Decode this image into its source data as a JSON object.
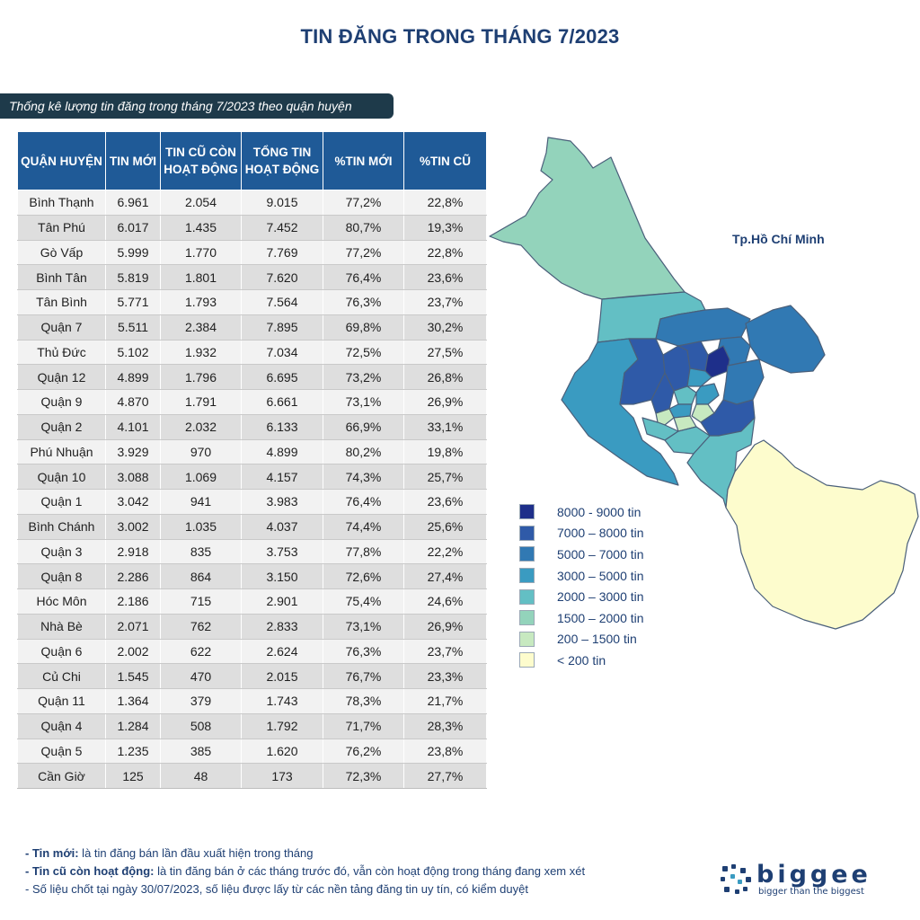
{
  "title": "TIN ĐĂNG TRONG THÁNG 7/2023",
  "subtitle": "Thống kê lượng tin đăng trong tháng 7/2023 theo quận huyện",
  "table": {
    "headers": [
      "QUẬN HUYỆN",
      "TIN MỚI",
      "TIN CŨ CÒN HOẠT ĐỘNG",
      "TỔNG TIN HOẠT ĐỘNG",
      "%TIN MỚI",
      "%TIN CŨ"
    ],
    "rows": [
      [
        "Bình Thạnh",
        "6.961",
        "2.054",
        "9.015",
        "77,2%",
        "22,8%"
      ],
      [
        "Tân Phú",
        "6.017",
        "1.435",
        "7.452",
        "80,7%",
        "19,3%"
      ],
      [
        "Gò Vấp",
        "5.999",
        "1.770",
        "7.769",
        "77,2%",
        "22,8%"
      ],
      [
        "Bình Tân",
        "5.819",
        "1.801",
        "7.620",
        "76,4%",
        "23,6%"
      ],
      [
        "Tân Bình",
        "5.771",
        "1.793",
        "7.564",
        "76,3%",
        "23,7%"
      ],
      [
        "Quận 7",
        "5.511",
        "2.384",
        "7.895",
        "69,8%",
        "30,2%"
      ],
      [
        "Thủ Đức",
        "5.102",
        "1.932",
        "7.034",
        "72,5%",
        "27,5%"
      ],
      [
        "Quận 12",
        "4.899",
        "1.796",
        "6.695",
        "73,2%",
        "26,8%"
      ],
      [
        "Quận 9",
        "4.870",
        "1.791",
        "6.661",
        "73,1%",
        "26,9%"
      ],
      [
        "Quận 2",
        "4.101",
        "2.032",
        "6.133",
        "66,9%",
        "33,1%"
      ],
      [
        "Phú Nhuận",
        "3.929",
        "970",
        "4.899",
        "80,2%",
        "19,8%"
      ],
      [
        "Quận 10",
        "3.088",
        "1.069",
        "4.157",
        "74,3%",
        "25,7%"
      ],
      [
        "Quận 1",
        "3.042",
        "941",
        "3.983",
        "76,4%",
        "23,6%"
      ],
      [
        "Bình Chánh",
        "3.002",
        "1.035",
        "4.037",
        "74,4%",
        "25,6%"
      ],
      [
        "Quận 3",
        "2.918",
        "835",
        "3.753",
        "77,8%",
        "22,2%"
      ],
      [
        "Quận 8",
        "2.286",
        "864",
        "3.150",
        "72,6%",
        "27,4%"
      ],
      [
        "Hóc Môn",
        "2.186",
        "715",
        "2.901",
        "75,4%",
        "24,6%"
      ],
      [
        "Nhà Bè",
        "2.071",
        "762",
        "2.833",
        "73,1%",
        "26,9%"
      ],
      [
        "Quận 6",
        "2.002",
        "622",
        "2.624",
        "76,3%",
        "23,7%"
      ],
      [
        "Củ Chi",
        "1.545",
        "470",
        "2.015",
        "76,7%",
        "23,3%"
      ],
      [
        "Quận 11",
        "1.364",
        "379",
        "1.743",
        "78,3%",
        "21,7%"
      ],
      [
        "Quận 4",
        "1.284",
        "508",
        "1.792",
        "71,7%",
        "28,3%"
      ],
      [
        "Quận 5",
        "1.235",
        "385",
        "1.620",
        "76,2%",
        "23,8%"
      ],
      [
        "Cần Giờ",
        "125",
        "48",
        "173",
        "72,3%",
        "27,7%"
      ]
    ]
  },
  "map": {
    "label": "Tp.Hồ Chí Minh",
    "legend": [
      {
        "label": "8000 - 9000 tin",
        "color": "#1e2f8a"
      },
      {
        "label": "7000 – 8000 tin",
        "color": "#2f5aa8"
      },
      {
        "label": "5000 – 7000 tin",
        "color": "#3179b3"
      },
      {
        "label": "3000 – 5000 tin",
        "color": "#3a9bc1"
      },
      {
        "label": "2000 – 3000 tin",
        "color": "#63bfc4"
      },
      {
        "label": "1500 – 2000 tin",
        "color": "#93d3bb"
      },
      {
        "label": "200 – 1500 tin",
        "color": "#c7e9c0"
      },
      {
        "label": "< 200 tin",
        "color": "#fdfccd"
      }
    ]
  },
  "notes": [
    {
      "term": "- Tin mới:",
      "text": " là tin đăng bán lần đầu xuất hiện trong tháng"
    },
    {
      "term": "- Tin cũ còn hoạt động:",
      "text": " là tin đăng bán ở các tháng trước đó, vẫn còn hoạt động trong tháng đang xem xét"
    },
    {
      "term": "",
      "text": "- Số liệu chốt tại ngày 30/07/2023, số liệu được lấy từ các nền tảng đăng tin uy tín, có kiểm duyệt"
    }
  ],
  "logo": {
    "name": "biggee",
    "tagline": "bigger than the biggest"
  }
}
